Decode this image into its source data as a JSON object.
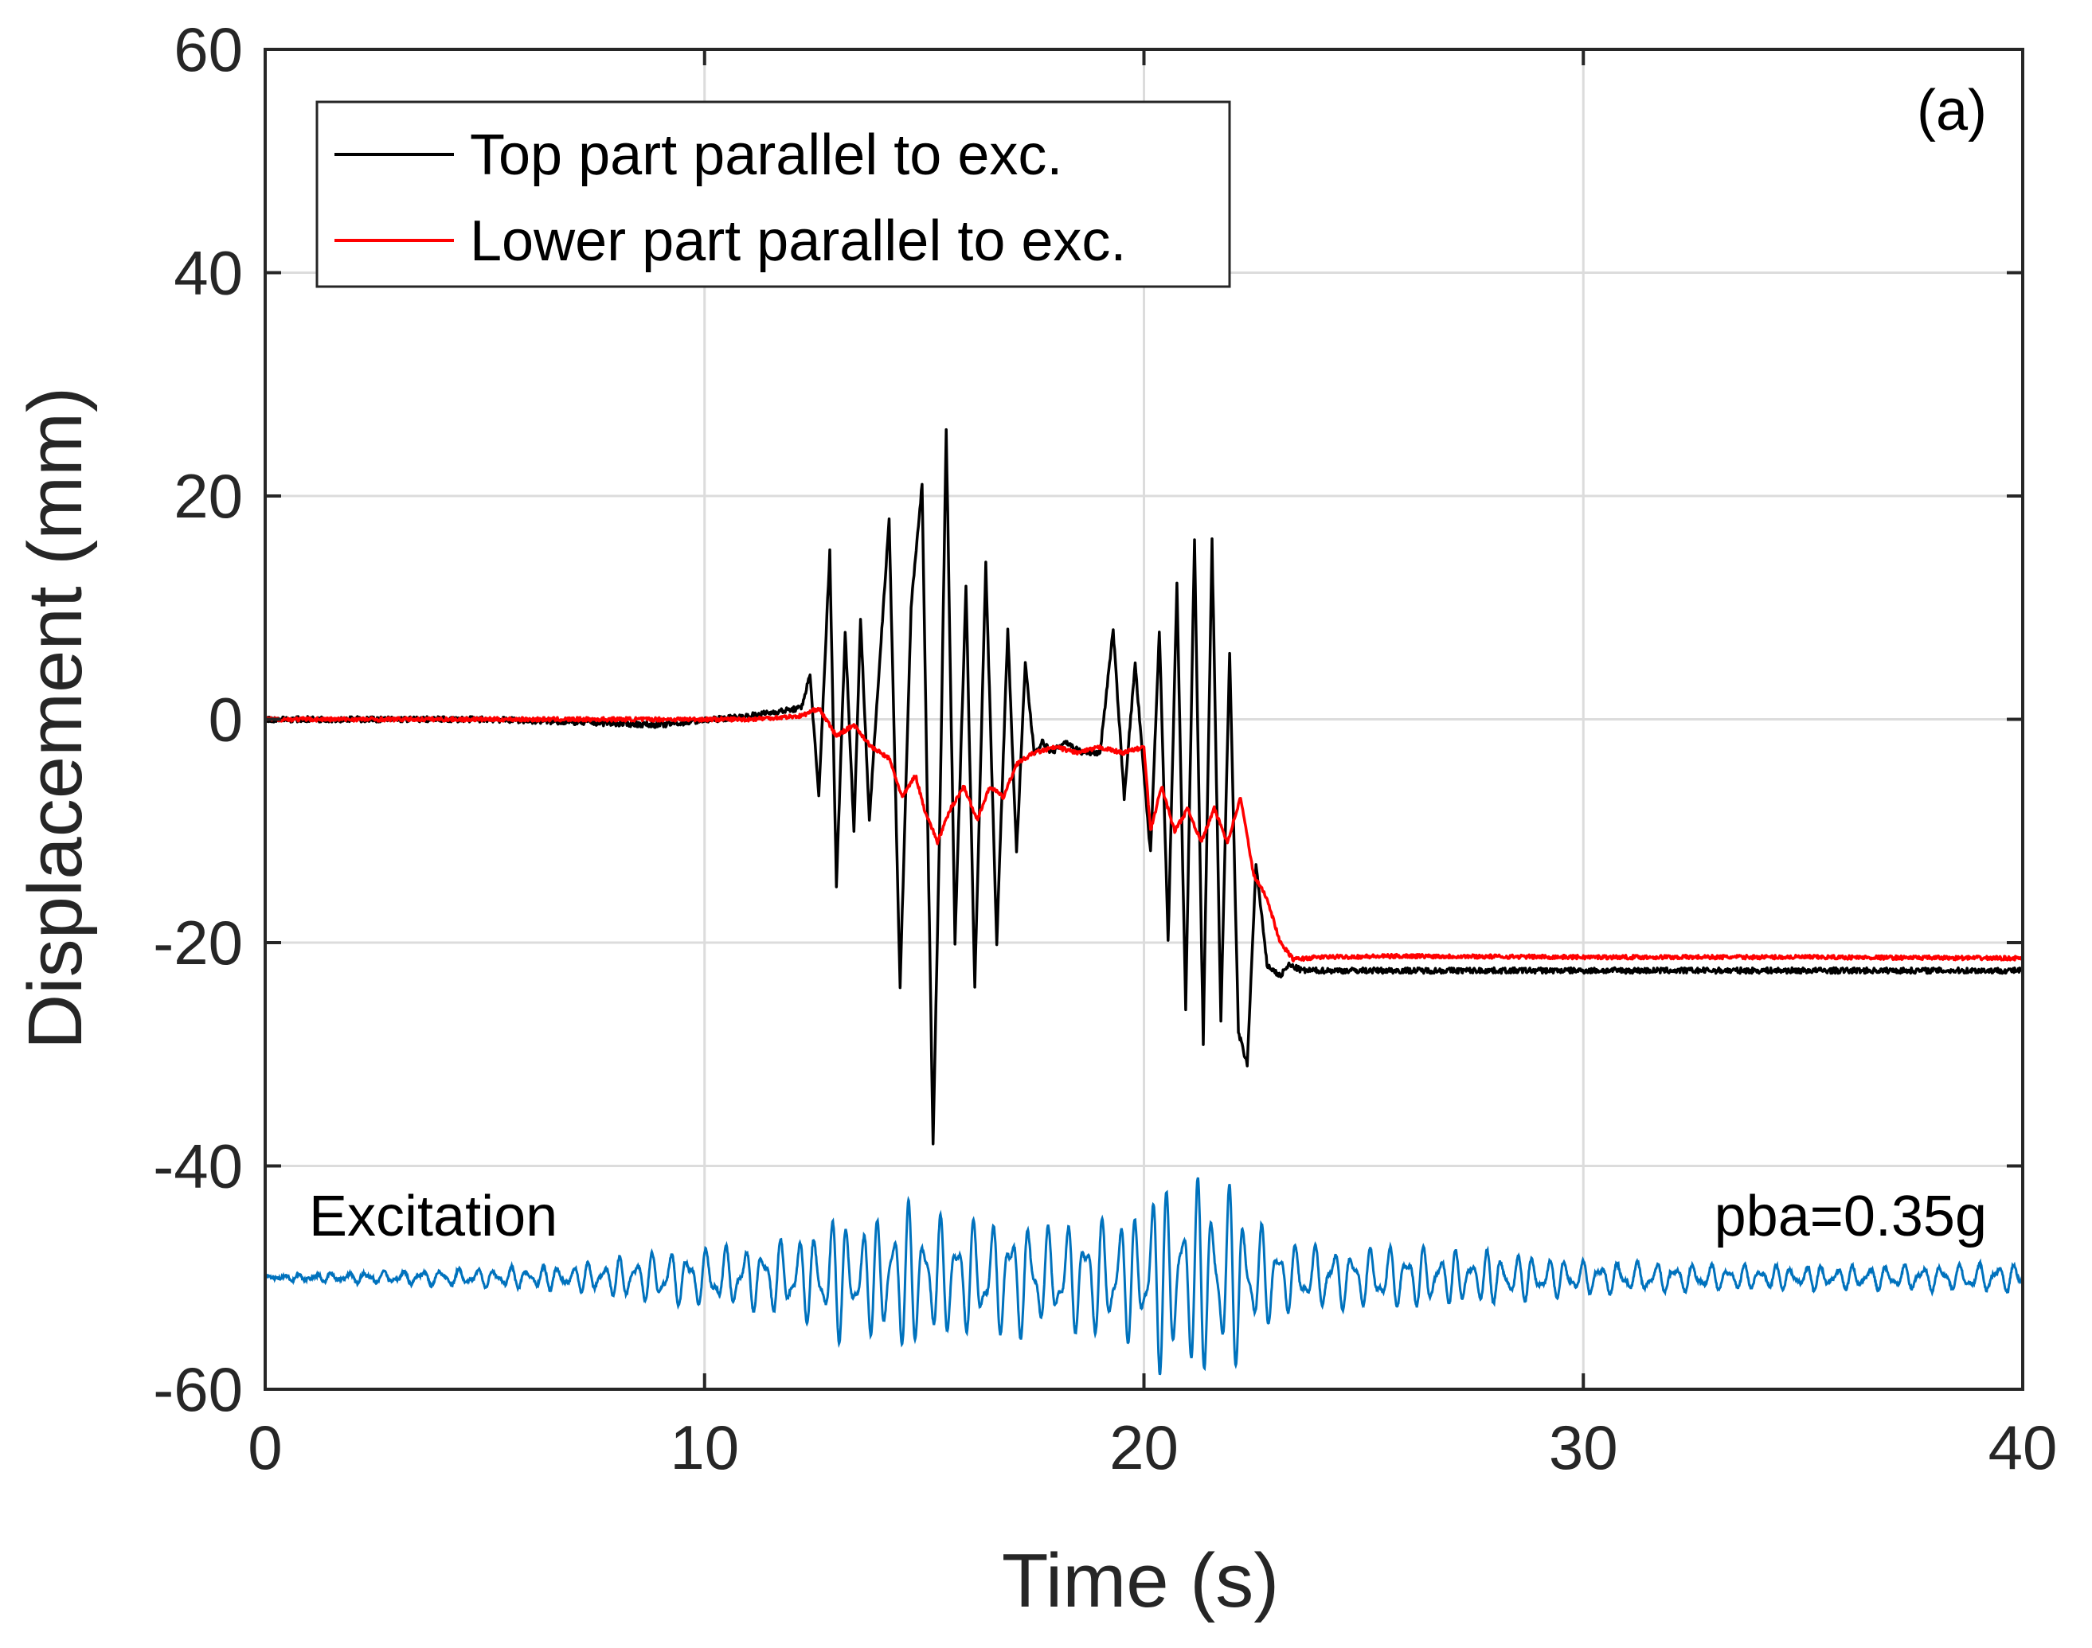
{
  "chart_data": {
    "type": "line",
    "panel_label": "(a)",
    "xlabel": "Time (s)",
    "ylabel": "Displacement (mm)",
    "xlim": [
      0,
      40
    ],
    "ylim": [
      -60,
      60
    ],
    "xticks": [
      0,
      10,
      20,
      30,
      40
    ],
    "yticks": [
      60,
      40,
      20,
      0,
      -20,
      -40,
      -60
    ],
    "grid": true,
    "legend_position": "top-left",
    "annotations": {
      "excitation_label": "Excitation",
      "pba_label": "pba=0.35g"
    },
    "series": [
      {
        "name": "Top part parallel to exc.",
        "color": "#000000",
        "x": [
          0,
          5,
          9,
          11,
          12.2,
          12.4,
          12.6,
          12.85,
          13.0,
          13.2,
          13.4,
          13.55,
          13.75,
          13.95,
          14.2,
          14.45,
          14.7,
          14.95,
          15.2,
          15.35,
          15.5,
          15.7,
          15.95,
          16.15,
          16.4,
          16.65,
          16.9,
          17.1,
          17.3,
          17.5,
          17.7,
          17.9,
          18.2,
          18.6,
          19.0,
          19.3,
          19.55,
          19.8,
          20.0,
          20.15,
          20.35,
          20.55,
          20.75,
          20.95,
          21.15,
          21.35,
          21.55,
          21.75,
          21.95,
          22.15,
          22.35,
          22.55,
          22.8,
          23.1,
          23.3,
          23.6,
          24.0,
          26,
          30,
          35,
          40
        ],
        "y": [
          0,
          0,
          -0.5,
          0.3,
          1,
          4,
          -7,
          15,
          -15,
          8,
          -10,
          9,
          -9,
          3,
          18,
          -24,
          10,
          21,
          -38,
          -10,
          26,
          -20,
          12,
          -24,
          14,
          -20,
          8,
          -12,
          5,
          -3,
          -2,
          -3,
          -2,
          -3,
          -3,
          8,
          -7,
          5,
          -5,
          -12,
          8,
          -20,
          12,
          -26,
          16,
          -29,
          16,
          -27,
          6,
          -28,
          -31,
          -13,
          -22,
          -23,
          -22,
          -22.5,
          -22.5,
          -22.5,
          -22.5,
          -22.5,
          -22.5
        ]
      },
      {
        "name": "Lower part parallel to exc.",
        "color": "#ff0000",
        "x": [
          0,
          5,
          9,
          11,
          12.2,
          12.6,
          13.0,
          13.4,
          13.8,
          14.2,
          14.5,
          14.8,
          15.0,
          15.3,
          15.6,
          15.9,
          16.2,
          16.5,
          16.8,
          17.1,
          17.5,
          18.0,
          18.5,
          19.0,
          19.5,
          20.0,
          20.15,
          20.4,
          20.7,
          21.0,
          21.3,
          21.6,
          21.9,
          22.2,
          22.5,
          22.8,
          23.1,
          23.4,
          24.0,
          26,
          30,
          35,
          40
        ],
        "y": [
          0,
          0,
          0,
          0,
          0.3,
          1,
          -1.5,
          -0.5,
          -2.5,
          -3.5,
          -7,
          -5,
          -8,
          -11,
          -8,
          -6,
          -9,
          -6,
          -7,
          -4,
          -3,
          -2.5,
          -3,
          -2.5,
          -3,
          -2.5,
          -10,
          -6,
          -10,
          -8,
          -11,
          -8,
          -11,
          -7,
          -14,
          -16,
          -20,
          -21.5,
          -21.3,
          -21.2,
          -21.3,
          -21.3,
          -21.4
        ]
      },
      {
        "name": "Excitation",
        "color": "#0072bd",
        "baseline": -50,
        "envelope_note": "ground excitation record plotted with offset",
        "x": [
          0,
          7,
          9,
          11,
          12.3,
          13.0,
          13.5,
          14.0,
          14.3,
          14.6,
          15.0,
          15.5,
          16.0,
          16.5,
          17.0,
          17.5,
          18.0,
          18.5,
          19.0,
          19.5,
          20.0,
          20.2,
          20.5,
          21.0,
          21.5,
          22.0,
          22.3,
          22.7,
          23.0,
          23.5,
          24.0,
          25.0,
          26.0,
          27.0,
          28.0,
          30.0,
          33.0,
          36.0,
          40.0
        ],
        "amplitude": [
          0.2,
          1.2,
          2.5,
          3,
          4,
          6,
          5,
          5.5,
          7.5,
          7,
          6,
          5.5,
          5.5,
          5,
          6,
          5,
          4.5,
          5.5,
          5.5,
          6,
          6,
          10,
          8,
          9,
          9,
          9,
          6,
          5,
          4,
          3,
          3,
          2.8,
          3,
          2.5,
          2.5,
          1.6,
          1.2,
          1.1,
          1.4
        ]
      }
    ]
  }
}
